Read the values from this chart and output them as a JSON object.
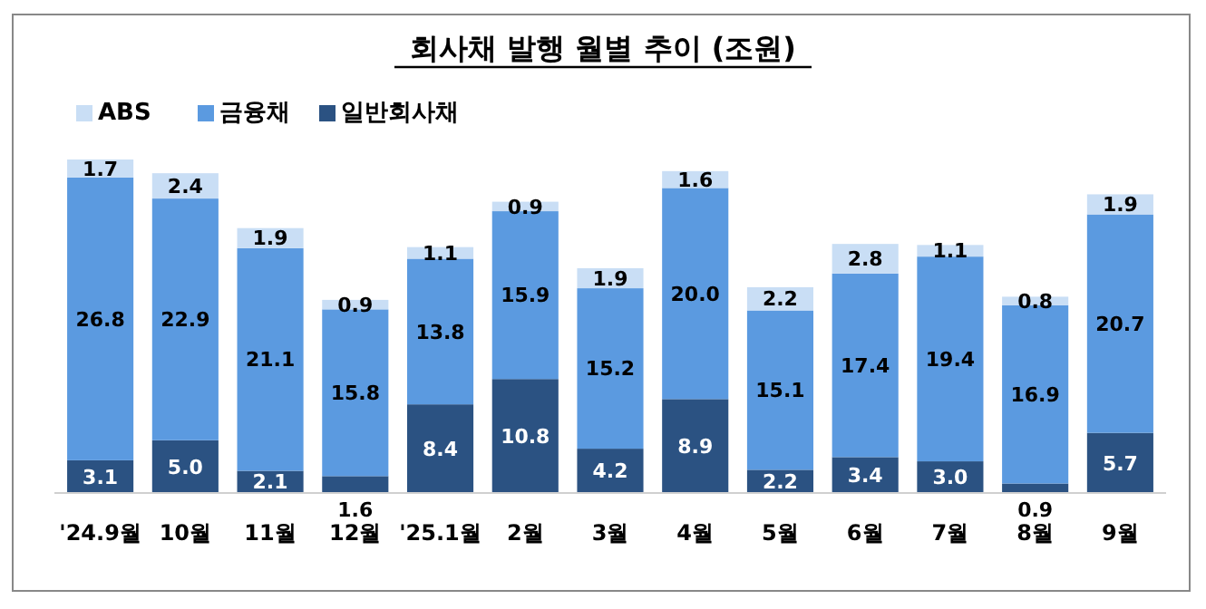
{
  "chart_data": {
    "type": "bar",
    "stacked": true,
    "title": "회사채 발행 월별 추이 (조원)",
    "legend": "top left",
    "categories": [
      "'24.9월",
      "10월",
      "11월",
      "12월",
      "'25.1월",
      "2월",
      "3월",
      "4월",
      "5월",
      "6월",
      "7월",
      "8월",
      "9월"
    ],
    "series": [
      {
        "name": "일반회사채",
        "color": "#2b5282",
        "values": [
          3.1,
          5.0,
          2.1,
          1.6,
          8.4,
          10.8,
          4.2,
          8.9,
          2.2,
          3.4,
          3.0,
          0.9,
          5.7
        ],
        "value_labels": [
          "3.1",
          "5.0",
          "2.1",
          "1.6",
          "8.4",
          "10.8",
          "4.2",
          "8.9",
          "2.2",
          "3.4",
          "3.0",
          "0.9",
          "5.7"
        ]
      },
      {
        "name": "금융채",
        "color": "#5b9ae0",
        "values": [
          26.8,
          22.9,
          21.1,
          15.8,
          13.8,
          15.9,
          15.2,
          20.0,
          15.1,
          17.4,
          19.4,
          16.9,
          20.7
        ],
        "value_labels": [
          "26.8",
          "22.9",
          "21.1",
          "15.8",
          "13.8",
          "15.9",
          "15.2",
          "20.0",
          "15.1",
          "17.4",
          "19.4",
          "16.9",
          "20.7"
        ]
      },
      {
        "name": "ABS",
        "color": "#c9def5",
        "values": [
          1.7,
          2.4,
          1.9,
          0.9,
          1.1,
          0.9,
          1.9,
          1.6,
          2.2,
          2.8,
          1.1,
          0.8,
          1.9
        ],
        "value_labels": [
          "1.7",
          "2.4",
          "1.9",
          "0.9",
          "1.1",
          "0.9",
          "1.9",
          "1.6",
          "2.2",
          "2.8",
          "1.1",
          "0.8",
          "1.9"
        ]
      }
    ]
  }
}
